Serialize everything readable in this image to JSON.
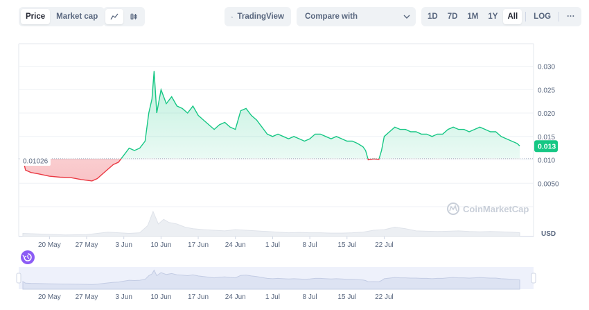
{
  "toolbar": {
    "metric_tabs": [
      {
        "label": "Price",
        "active": true
      },
      {
        "label": "Market cap",
        "active": false
      }
    ],
    "chart_types": [
      {
        "icon": "line-chart-icon",
        "active": true
      },
      {
        "icon": "candlestick-icon",
        "active": false
      }
    ],
    "tradingview_label": "TradingView",
    "compare_label": "Compare with",
    "ranges": [
      {
        "label": "1D",
        "active": false
      },
      {
        "label": "7D",
        "active": false
      },
      {
        "label": "1M",
        "active": false
      },
      {
        "label": "1Y",
        "active": false
      },
      {
        "label": "All",
        "active": true
      }
    ],
    "log_label": "LOG",
    "more_label": "···"
  },
  "colors": {
    "up": "#16c784",
    "down": "#ea3943",
    "grid": "#eff2f5",
    "accent_purple": "#8c5cf5"
  },
  "watermark": "CoinMarketCap",
  "currency_label": "USD",
  "chart_data": {
    "type": "area",
    "x_tick_labels": [
      "20 May",
      "27 May",
      "3 Jun",
      "10 Jun",
      "17 Jun",
      "24 Jun",
      "1 Jul",
      "8 Jul",
      "15 Jul",
      "22 Jul"
    ],
    "y_tick_labels": [
      "0.030",
      "0.025",
      "0.020",
      "0.015",
      "0.010",
      "0.0050"
    ],
    "y_ticks": [
      0.03,
      0.025,
      0.02,
      0.015,
      0.01,
      0.005
    ],
    "ylim": [
      0,
      0.032
    ],
    "baseline": 0.01026,
    "baseline_label": "0.01026",
    "current_label": "0.013",
    "grid": true,
    "price": [
      [
        0,
        0.01026
      ],
      [
        0.5,
        0.0078
      ],
      [
        1.5,
        0.0073
      ],
      [
        3,
        0.007
      ],
      [
        5,
        0.0065
      ],
      [
        7,
        0.0063
      ],
      [
        9,
        0.0062
      ],
      [
        11,
        0.0058
      ],
      [
        13,
        0.0055
      ],
      [
        14,
        0.006
      ],
      [
        15.5,
        0.0075
      ],
      [
        17,
        0.009
      ],
      [
        18,
        0.0095
      ],
      [
        19,
        0.011
      ],
      [
        20,
        0.0125
      ],
      [
        21,
        0.012
      ],
      [
        22,
        0.0125
      ],
      [
        23,
        0.014
      ],
      [
        23.7,
        0.02
      ],
      [
        24.3,
        0.023
      ],
      [
        24.7,
        0.029
      ],
      [
        25.2,
        0.02
      ],
      [
        26,
        0.025
      ],
      [
        27,
        0.022
      ],
      [
        28,
        0.0235
      ],
      [
        29,
        0.0215
      ],
      [
        30,
        0.021
      ],
      [
        31,
        0.02
      ],
      [
        32,
        0.0215
      ],
      [
        33,
        0.0195
      ],
      [
        34,
        0.0185
      ],
      [
        35,
        0.0175
      ],
      [
        36,
        0.0165
      ],
      [
        37,
        0.0175
      ],
      [
        38,
        0.018
      ],
      [
        39,
        0.017
      ],
      [
        40,
        0.0165
      ],
      [
        41,
        0.0205
      ],
      [
        42,
        0.021
      ],
      [
        43,
        0.0195
      ],
      [
        44,
        0.0185
      ],
      [
        45,
        0.017
      ],
      [
        46,
        0.0155
      ],
      [
        47,
        0.015
      ],
      [
        48,
        0.0155
      ],
      [
        49,
        0.015
      ],
      [
        50,
        0.0145
      ],
      [
        51,
        0.015
      ],
      [
        52,
        0.0145
      ],
      [
        53,
        0.014
      ],
      [
        54,
        0.0145
      ],
      [
        55,
        0.0155
      ],
      [
        56,
        0.0155
      ],
      [
        57,
        0.015
      ],
      [
        58,
        0.0145
      ],
      [
        59,
        0.015
      ],
      [
        60,
        0.0145
      ],
      [
        61,
        0.014
      ],
      [
        62,
        0.014
      ],
      [
        63,
        0.0135
      ],
      [
        64,
        0.0128
      ],
      [
        64.5,
        0.012
      ],
      [
        65,
        0.01
      ],
      [
        66,
        0.0102
      ],
      [
        67,
        0.0101
      ],
      [
        67.5,
        0.012
      ],
      [
        68,
        0.015
      ],
      [
        69,
        0.016
      ],
      [
        70,
        0.017
      ],
      [
        71,
        0.0165
      ],
      [
        72,
        0.0165
      ],
      [
        73,
        0.016
      ],
      [
        74,
        0.016
      ],
      [
        75,
        0.0155
      ],
      [
        76,
        0.0155
      ],
      [
        77,
        0.015
      ],
      [
        78,
        0.0155
      ],
      [
        79,
        0.0155
      ],
      [
        80,
        0.0165
      ],
      [
        81,
        0.017
      ],
      [
        82,
        0.0165
      ],
      [
        83,
        0.0165
      ],
      [
        84,
        0.016
      ],
      [
        85,
        0.0165
      ],
      [
        86,
        0.017
      ],
      [
        87,
        0.0165
      ],
      [
        88,
        0.016
      ],
      [
        89,
        0.016
      ],
      [
        90,
        0.015
      ],
      [
        91,
        0.0145
      ],
      [
        92,
        0.014
      ],
      [
        93,
        0.0135
      ],
      [
        93.5,
        0.013
      ]
    ],
    "volume": [
      [
        0,
        0.1
      ],
      [
        3,
        0.08
      ],
      [
        8,
        0.05
      ],
      [
        12,
        0.06
      ],
      [
        14,
        0.1
      ],
      [
        16,
        0.14
      ],
      [
        18,
        0.12
      ],
      [
        20,
        0.1
      ],
      [
        22,
        0.12
      ],
      [
        23.5,
        0.35
      ],
      [
        24.5,
        0.8
      ],
      [
        25.5,
        0.4
      ],
      [
        26.5,
        0.55
      ],
      [
        27.5,
        0.45
      ],
      [
        29,
        0.4
      ],
      [
        30.5,
        0.3
      ],
      [
        32,
        0.25
      ],
      [
        34,
        0.22
      ],
      [
        36,
        0.2
      ],
      [
        38,
        0.18
      ],
      [
        40,
        0.22
      ],
      [
        42,
        0.2
      ],
      [
        44,
        0.18
      ],
      [
        46,
        0.16
      ],
      [
        48,
        0.14
      ],
      [
        50,
        0.12
      ],
      [
        52,
        0.13
      ],
      [
        54,
        0.12
      ],
      [
        56,
        0.12
      ],
      [
        58,
        0.11
      ],
      [
        60,
        0.11
      ],
      [
        62,
        0.12
      ],
      [
        64,
        0.14
      ],
      [
        66,
        0.2
      ],
      [
        68,
        0.22
      ],
      [
        70,
        0.3
      ],
      [
        72,
        0.25
      ],
      [
        74,
        0.18
      ],
      [
        76,
        0.17
      ],
      [
        78,
        0.16
      ],
      [
        80,
        0.17
      ],
      [
        82,
        0.18
      ],
      [
        84,
        0.16
      ],
      [
        86,
        0.15
      ],
      [
        88,
        0.16
      ],
      [
        90,
        0.15
      ],
      [
        92,
        0.14
      ],
      [
        93.5,
        0.12
      ]
    ]
  }
}
